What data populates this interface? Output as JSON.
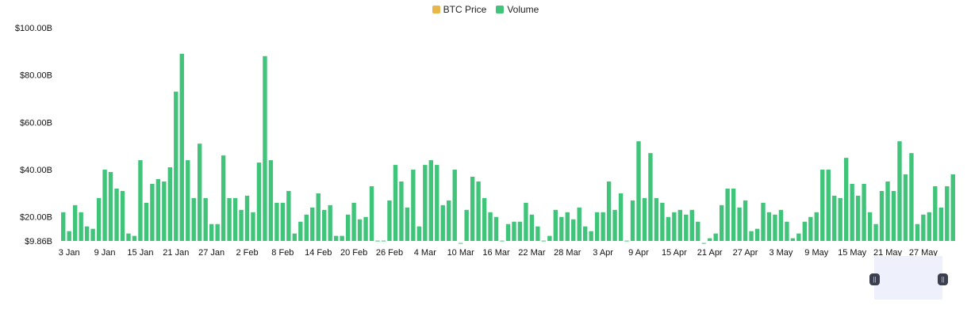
{
  "legend": {
    "items": [
      {
        "label": "BTC Price",
        "color": "#e8b64a"
      },
      {
        "label": "Volume",
        "color": "#3fc47a"
      }
    ]
  },
  "brush": {
    "left_handle_icon": "grip-icon",
    "right_handle_icon": "grip-icon",
    "range_start_fraction": 0.9,
    "range_end_fraction": 0.99
  },
  "chart_data": {
    "type": "bar",
    "series": [
      {
        "name": "Volume",
        "color": "#3fc47a",
        "values": [
          22,
          14,
          25,
          22,
          16,
          15,
          28,
          40,
          39,
          32,
          31,
          13,
          12,
          44,
          26,
          34,
          36,
          35,
          41,
          73,
          89,
          44,
          28,
          51,
          28,
          17,
          17,
          46,
          28,
          28,
          23,
          29,
          22,
          43,
          88,
          44,
          26,
          26,
          31,
          13,
          18,
          21,
          24,
          30,
          23,
          25,
          12,
          12,
          21,
          26,
          19,
          20,
          33,
          10,
          10,
          27,
          42,
          35,
          24,
          40,
          16,
          42,
          44,
          42,
          25,
          27,
          40,
          9,
          23,
          37,
          35,
          28,
          22,
          20,
          10,
          17,
          18,
          18,
          26,
          21,
          16,
          10,
          12,
          23,
          20,
          22,
          19,
          24,
          16,
          14,
          22,
          22,
          35,
          23,
          30,
          10,
          27,
          52,
          28,
          47,
          28,
          26,
          20,
          22,
          23,
          21,
          23,
          18,
          9,
          11,
          13,
          25,
          32,
          32,
          24,
          27,
          14,
          15,
          26,
          22,
          21,
          23,
          18,
          11,
          13,
          18,
          20,
          22,
          40,
          40,
          29,
          28,
          45,
          34,
          29,
          34,
          22,
          17,
          31,
          35,
          31,
          52,
          38,
          47,
          17,
          21,
          22,
          33,
          24,
          33,
          38
        ]
      }
    ],
    "x_tick_labels": [
      "3 Jan",
      "9 Jan",
      "15 Jan",
      "21 Jan",
      "27 Jan",
      "2 Feb",
      "8 Feb",
      "14 Feb",
      "20 Feb",
      "26 Feb",
      "4 Mar",
      "10 Mar",
      "16 Mar",
      "22 Mar",
      "28 Mar",
      "3 Apr",
      "9 Apr",
      "15 Apr",
      "21 Apr",
      "27 Apr",
      "3 May",
      "9 May",
      "15 May",
      "21 May",
      "27 May"
    ],
    "x_tick_start_index": 1,
    "x_tick_every": 6,
    "y_tick_labels": [
      "$100.00B",
      "$80.00B",
      "$60.00B",
      "$40.00B",
      "$20.00B",
      "$9.86B"
    ],
    "y_tick_values": [
      100,
      80,
      60,
      40,
      20,
      9.86
    ],
    "ylim": [
      9.86,
      100
    ],
    "unit": "B USD",
    "grid": false,
    "legend_position": "top-center"
  }
}
